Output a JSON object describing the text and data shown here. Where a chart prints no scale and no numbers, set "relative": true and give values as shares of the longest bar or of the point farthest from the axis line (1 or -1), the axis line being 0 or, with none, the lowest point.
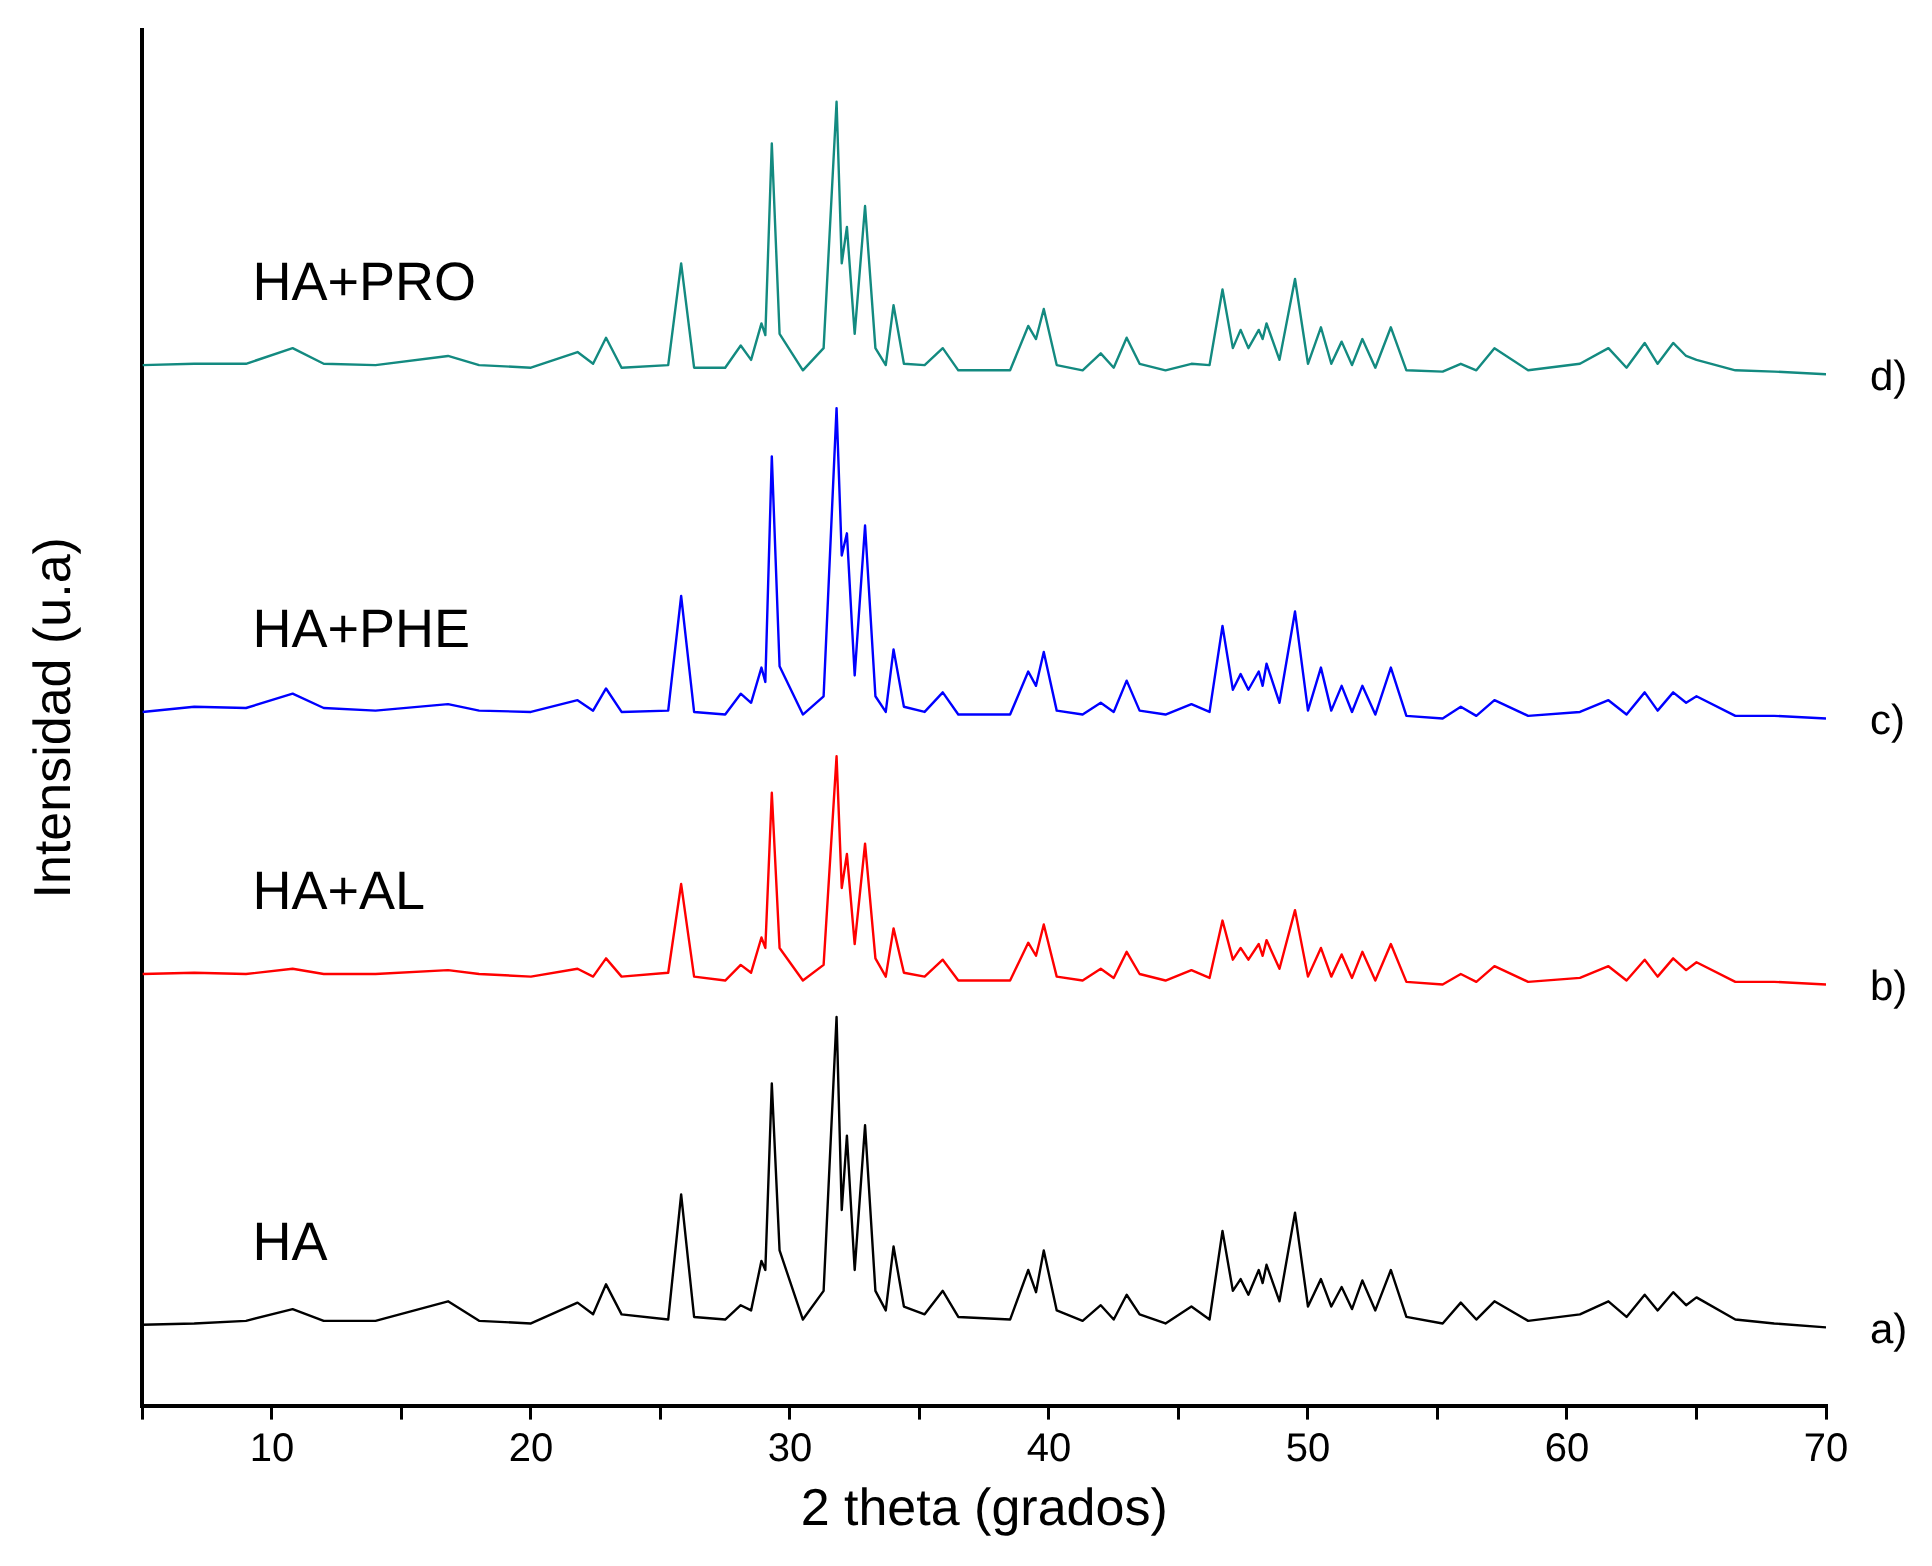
{
  "chart_data": {
    "type": "line",
    "relative": true,
    "xlabel": "2 theta (grados)",
    "ylabel": "Intensidad (u.a)",
    "xlim": [
      5,
      70
    ],
    "xticks": [
      {
        "value": 5,
        "label": null
      },
      10,
      {
        "value": 15,
        "label": null
      },
      20,
      {
        "value": 25,
        "label": null
      },
      30,
      {
        "value": 35,
        "label": null
      },
      40,
      {
        "value": 45,
        "label": null
      },
      50,
      {
        "value": 55,
        "label": null
      },
      60,
      {
        "value": 65,
        "label": null
      },
      70
    ],
    "grid": false,
    "legend": false,
    "marker": "none",
    "x": [
      5,
      7,
      9,
      10.8,
      12,
      14,
      16.8,
      18,
      20,
      21.8,
      22.4,
      22.9,
      23.5,
      25.3,
      25.8,
      26.3,
      27.5,
      28.1,
      28.5,
      28.9,
      29.05,
      29.3,
      29.6,
      30.5,
      31.3,
      31.8,
      32.0,
      32.2,
      32.5,
      32.9,
      33.3,
      33.7,
      34.0,
      34.4,
      35.2,
      35.9,
      36.5,
      38.5,
      39.2,
      39.5,
      39.8,
      40.3,
      41.3,
      42.0,
      42.5,
      43.0,
      43.5,
      44.5,
      45.5,
      46.2,
      46.7,
      47.1,
      47.4,
      47.7,
      48.1,
      48.25,
      48.4,
      48.9,
      49.5,
      50.0,
      50.5,
      50.9,
      51.3,
      51.7,
      52.1,
      52.6,
      53.2,
      53.8,
      55.2,
      55.9,
      56.5,
      57.2,
      58.5,
      60.5,
      61.6,
      62.3,
      63.0,
      63.5,
      64.1,
      64.6,
      65.0,
      66.5,
      68,
      70
    ],
    "series": [
      {
        "name": "HA",
        "color": "#000000",
        "values": [
          0.062,
          0.063,
          0.065,
          0.074,
          0.065,
          0.065,
          0.08,
          0.065,
          0.063,
          0.079,
          0.07,
          0.093,
          0.07,
          0.066,
          0.162,
          0.068,
          0.066,
          0.077,
          0.073,
          0.111,
          0.104,
          0.247,
          0.119,
          0.066,
          0.088,
          0.298,
          0.15,
          0.207,
          0.104,
          0.215,
          0.088,
          0.073,
          0.122,
          0.076,
          0.07,
          0.088,
          0.068,
          0.066,
          0.104,
          0.087,
          0.119,
          0.073,
          0.065,
          0.077,
          0.066,
          0.085,
          0.07,
          0.063,
          0.076,
          0.066,
          0.134,
          0.088,
          0.097,
          0.085,
          0.104,
          0.094,
          0.108,
          0.08,
          0.148,
          0.076,
          0.097,
          0.076,
          0.091,
          0.074,
          0.096,
          0.073,
          0.104,
          0.068,
          0.063,
          0.079,
          0.066,
          0.08,
          0.065,
          0.07,
          0.08,
          0.068,
          0.085,
          0.073,
          0.087,
          0.077,
          0.083,
          0.066,
          0.063,
          0.06
        ]
      },
      {
        "name": "HA+AL",
        "color": "#ff0000",
        "values": [
          0.331,
          0.332,
          0.331,
          0.335,
          0.331,
          0.331,
          0.334,
          0.331,
          0.329,
          0.335,
          0.329,
          0.343,
          0.329,
          0.332,
          0.4,
          0.329,
          0.326,
          0.338,
          0.332,
          0.359,
          0.351,
          0.47,
          0.351,
          0.326,
          0.338,
          0.498,
          0.397,
          0.423,
          0.354,
          0.431,
          0.343,
          0.329,
          0.366,
          0.332,
          0.329,
          0.342,
          0.326,
          0.326,
          0.355,
          0.345,
          0.369,
          0.329,
          0.326,
          0.335,
          0.328,
          0.348,
          0.331,
          0.326,
          0.334,
          0.328,
          0.372,
          0.342,
          0.351,
          0.342,
          0.354,
          0.345,
          0.357,
          0.335,
          0.38,
          0.329,
          0.351,
          0.329,
          0.346,
          0.328,
          0.348,
          0.326,
          0.354,
          0.325,
          0.323,
          0.331,
          0.325,
          0.337,
          0.325,
          0.328,
          0.337,
          0.326,
          0.342,
          0.329,
          0.343,
          0.334,
          0.34,
          0.325,
          0.325,
          0.323
        ]
      },
      {
        "name": "HA+PHE",
        "color": "#0000ff",
        "values": [
          0.532,
          0.536,
          0.535,
          0.546,
          0.535,
          0.533,
          0.538,
          0.533,
          0.532,
          0.541,
          0.533,
          0.55,
          0.532,
          0.533,
          0.621,
          0.532,
          0.53,
          0.546,
          0.539,
          0.566,
          0.555,
          0.728,
          0.567,
          0.53,
          0.544,
          0.765,
          0.652,
          0.669,
          0.56,
          0.675,
          0.544,
          0.532,
          0.58,
          0.536,
          0.532,
          0.547,
          0.53,
          0.53,
          0.563,
          0.552,
          0.578,
          0.533,
          0.53,
          0.539,
          0.532,
          0.556,
          0.533,
          0.53,
          0.538,
          0.532,
          0.598,
          0.549,
          0.561,
          0.549,
          0.563,
          0.552,
          0.569,
          0.539,
          0.609,
          0.533,
          0.566,
          0.533,
          0.552,
          0.532,
          0.552,
          0.53,
          0.566,
          0.529,
          0.527,
          0.536,
          0.529,
          0.541,
          0.529,
          0.532,
          0.541,
          0.53,
          0.547,
          0.533,
          0.547,
          0.539,
          0.544,
          0.529,
          0.529,
          0.527
        ]
      },
      {
        "name": "HA+PRO",
        "color": "#138a80",
        "values": [
          0.798,
          0.799,
          0.799,
          0.811,
          0.799,
          0.798,
          0.805,
          0.798,
          0.796,
          0.808,
          0.799,
          0.819,
          0.796,
          0.798,
          0.876,
          0.796,
          0.796,
          0.813,
          0.802,
          0.83,
          0.821,
          0.968,
          0.822,
          0.794,
          0.811,
          1,
          0.876,
          0.904,
          0.822,
          0.92,
          0.811,
          0.798,
          0.844,
          0.799,
          0.798,
          0.811,
          0.794,
          0.794,
          0.828,
          0.818,
          0.841,
          0.798,
          0.794,
          0.807,
          0.796,
          0.819,
          0.799,
          0.794,
          0.799,
          0.798,
          0.856,
          0.811,
          0.825,
          0.811,
          0.825,
          0.818,
          0.83,
          0.802,
          0.864,
          0.799,
          0.827,
          0.799,
          0.816,
          0.798,
          0.818,
          0.796,
          0.827,
          0.794,
          0.793,
          0.799,
          0.794,
          0.811,
          0.794,
          0.799,
          0.811,
          0.796,
          0.815,
          0.799,
          0.815,
          0.805,
          0.802,
          0.794,
          0.793,
          0.791
        ]
      }
    ],
    "annotations": [
      "a)",
      "b)",
      "c)",
      "d)"
    ]
  }
}
